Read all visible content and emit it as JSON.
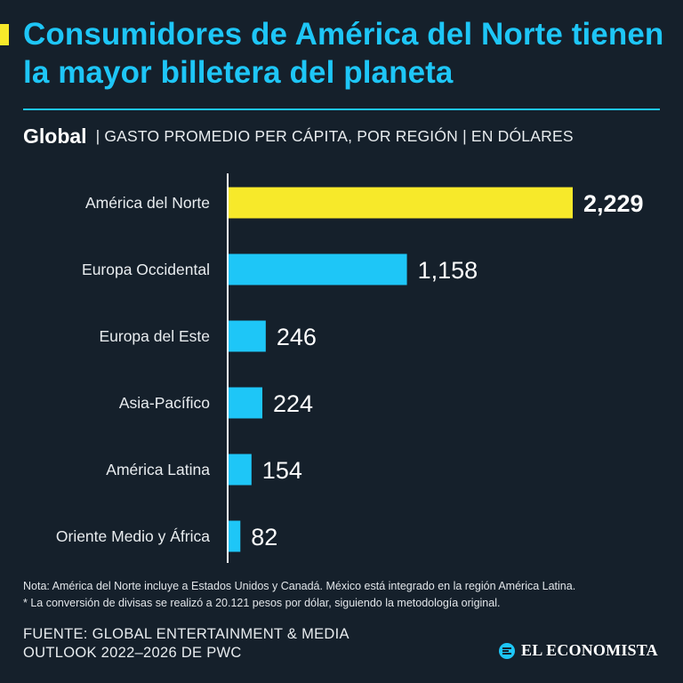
{
  "header": {
    "title": "Consumidores de América del Norte tienen la mayor billetera del planeta",
    "scope": "Global",
    "description": "| GASTO PROMEDIO PER CÁPITA, POR REGIÓN | EN DÓLARES"
  },
  "chart_data": {
    "type": "bar",
    "orientation": "horizontal",
    "title": "Consumidores de América del Norte tienen la mayor billetera del planeta",
    "subtitle": "Global | GASTO PROMEDIO PER CÁPITA, POR REGIÓN | EN DÓLARES",
    "categories": [
      "América del Norte",
      "Europa Occidental",
      "Europa del Este",
      "Asia-Pacífico",
      "América Latina",
      "Oriente Medio y África"
    ],
    "values": [
      2229,
      1158,
      246,
      224,
      154,
      82
    ],
    "value_labels": [
      "2,229",
      "1,158",
      "246",
      "224",
      "154",
      "82"
    ],
    "xlabel": "",
    "ylabel": "",
    "xlim": [
      0,
      2229
    ],
    "grid": false,
    "highlight_index": 0
  },
  "colors": {
    "background": "#15202b",
    "accent": "#1ec6f7",
    "highlight": "#f7e92a",
    "bar": "#1ec6f7",
    "text": "#ffffff"
  },
  "notes": {
    "line1": "Nota: América del Norte incluye a Estados Unidos y Canadá. México está integrado en la región América Latina.",
    "line2": "* La conversión de divisas se realizó a 20.121 pesos por dólar, siguiendo la metodología original."
  },
  "source": {
    "line1": "FUENTE: GLOBAL ENTERTAINMENT & MEDIA",
    "line2": "OUTLOOK 2022–2026 DE PWC"
  },
  "brand": {
    "name": "EL ECONOMISTA",
    "icon": "el-economista-logo-icon"
  }
}
